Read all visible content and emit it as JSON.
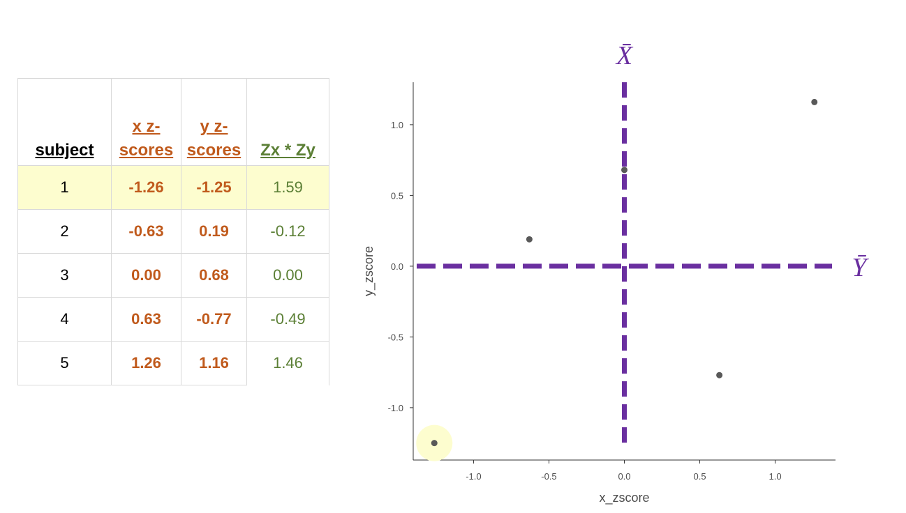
{
  "table": {
    "headers": {
      "subject": "subject",
      "x": "x z-scores",
      "y": "y z-scores",
      "product": "Zx * Zy"
    },
    "rows": [
      {
        "subject": "1",
        "x": "-1.26",
        "y": "-1.25",
        "product": "1.59",
        "highlighted": true
      },
      {
        "subject": "2",
        "x": "-0.63",
        "y": "0.19",
        "product": "-0.12",
        "highlighted": false
      },
      {
        "subject": "3",
        "x": "0.00",
        "y": "0.68",
        "product": "0.00",
        "highlighted": false
      },
      {
        "subject": "4",
        "x": "0.63",
        "y": "-0.77",
        "product": "-0.49",
        "highlighted": false
      },
      {
        "subject": "5",
        "x": "1.26",
        "y": "1.16",
        "product": "1.46",
        "highlighted": false
      }
    ],
    "colors": {
      "xy_text": "#c05a1c",
      "product_text": "#5b7f35",
      "highlight": "#fdfdcf"
    }
  },
  "chart_data": {
    "type": "scatter",
    "xlabel": "x_zscore",
    "ylabel": "y_zscore",
    "xlim": [
      -1.4,
      1.4
    ],
    "ylim": [
      -1.37,
      1.3
    ],
    "xticks": [
      -1.0,
      -0.5,
      0.0,
      0.5,
      1.0
    ],
    "xtick_labels": [
      "-1.0",
      "-0.5",
      "0.0",
      "0.5",
      "1.0"
    ],
    "yticks": [
      -1.0,
      -0.5,
      0.0,
      0.5,
      1.0
    ],
    "ytick_labels": [
      "-1.0",
      "-0.5",
      "0.0",
      "0.5",
      "1.0"
    ],
    "points": [
      {
        "x": -1.26,
        "y": -1.25
      },
      {
        "x": -0.63,
        "y": 0.19
      },
      {
        "x": 0.0,
        "y": 0.68
      },
      {
        "x": 0.63,
        "y": -0.77
      },
      {
        "x": 1.26,
        "y": 1.16
      }
    ],
    "highlighted_point_index": 0,
    "mean_lines": {
      "x_mean": {
        "value": 0.0,
        "label": "X̄"
      },
      "y_mean": {
        "value": 0.0,
        "label": "Ȳ"
      }
    },
    "grid": false,
    "colors": {
      "points": "#595959",
      "mean_lines": "#6a2fa0",
      "highlight": "#fdfdcf"
    }
  }
}
